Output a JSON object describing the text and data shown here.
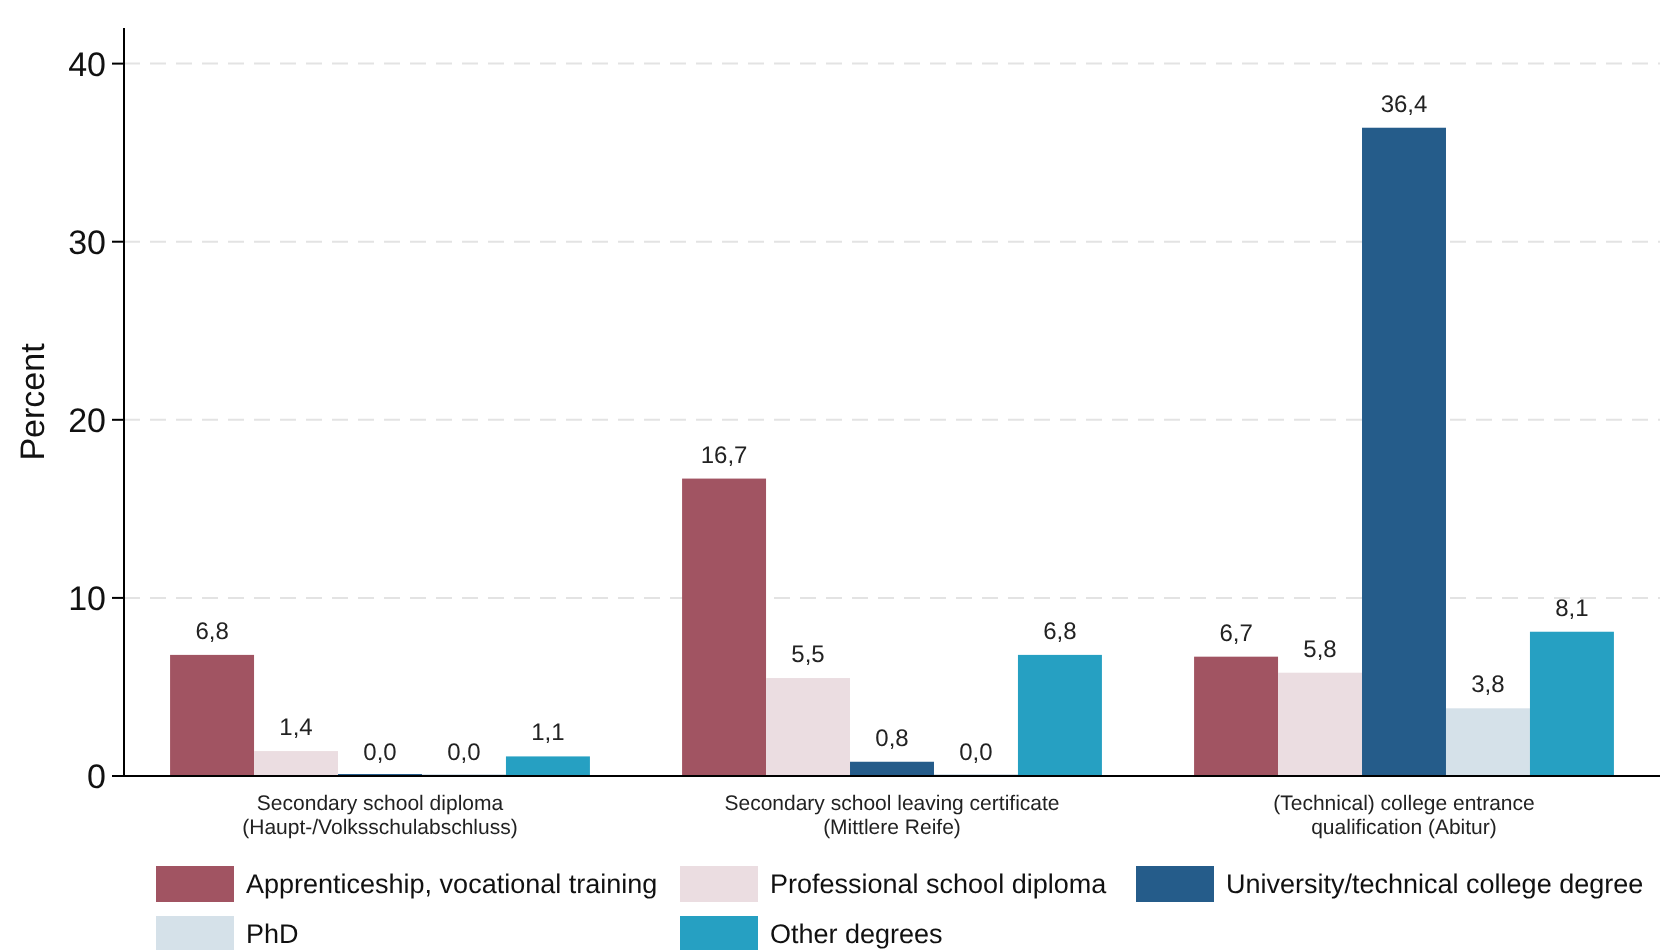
{
  "chart_data": {
    "type": "bar",
    "ylabel": "Percent",
    "categories": [
      "Secondary school diploma\n(Haupt-/Volksschulabschluss)",
      "Secondary school leaving certificate\n(Mittlere Reife)",
      "(Technical) college entrance\nqualification (Abitur)"
    ],
    "series": [
      {
        "name": "Apprenticeship, vocational training",
        "color": "#a15462",
        "values": [
          6.8,
          16.7,
          6.7
        ],
        "value_labels": [
          "6,8",
          "16,7",
          "6,7"
        ]
      },
      {
        "name": "Professional school diploma",
        "color": "#ebdde1",
        "values": [
          1.4,
          5.5,
          5.8
        ],
        "value_labels": [
          "1,4",
          "5,5",
          "5,8"
        ]
      },
      {
        "name": "University/technical college degree",
        "color": "#255c8a",
        "values": [
          0.0,
          0.8,
          36.4
        ],
        "value_labels": [
          "0,0",
          "0,8",
          "36,4"
        ]
      },
      {
        "name": "PhD",
        "color": "#d5e1e9",
        "values": [
          0.0,
          0.0,
          3.8
        ],
        "value_labels": [
          "0,0",
          "0,0",
          "3,8"
        ]
      },
      {
        "name": "Other degrees",
        "color": "#26a0c2",
        "values": [
          1.1,
          6.8,
          8.1
        ],
        "value_labels": [
          "1,1",
          "6,8",
          "8,1"
        ]
      }
    ],
    "ylim": [
      0,
      42
    ],
    "yticks": [
      0,
      10,
      20,
      30,
      40
    ],
    "grid": "y",
    "legend": "bottom"
  }
}
